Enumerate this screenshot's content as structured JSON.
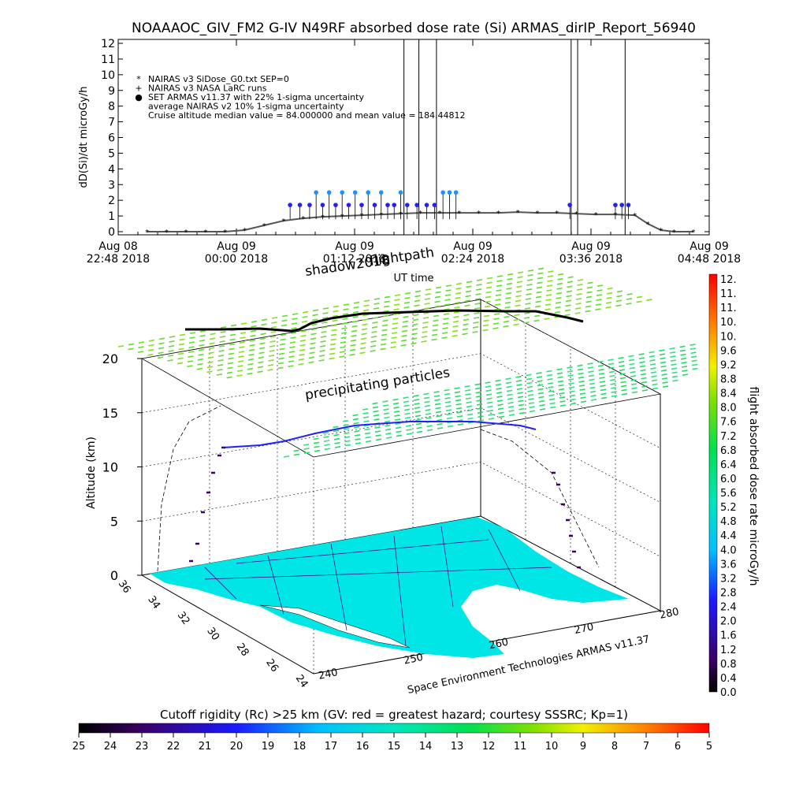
{
  "title": "NOAAAOC_GIV_FM2 G-IV   N49RF  absorbed dose rate (Si) ARMAS_dirIP_Report_56940",
  "chart_data": [
    {
      "type": "scatter",
      "panel": "time-series",
      "ylabel": "dD(Si)/dt microGy/h",
      "xlabel": "UT time",
      "ylim": [
        0,
        12
      ],
      "yticks": [
        "0",
        "1",
        "2",
        "3",
        "4",
        "5",
        "6",
        "7",
        "8",
        "9",
        "10",
        "11",
        "12"
      ],
      "xticks": [
        {
          "day": "Aug 08",
          "time": "22:48 2018"
        },
        {
          "day": "Aug 09",
          "time": "00:00 2018"
        },
        {
          "day": "Aug 09",
          "time": "01:12 2018"
        },
        {
          "day": "Aug 09",
          "time": "02:24 2018"
        },
        {
          "day": "Aug 09",
          "time": "03:36 2018"
        },
        {
          "day": "Aug 09",
          "time": "04:48 2018"
        }
      ],
      "xrange_hours": [
        0,
        6
      ],
      "legend_placement": "top-left",
      "legend": [
        {
          "symbol": "*",
          "text": "NAIRAS v3 SiDose_G0.txt SEP=0"
        },
        {
          "symbol": "+",
          "text": "NAIRAS v3 NASA LaRC runs"
        },
        {
          "symbol": "●",
          "text": "SET ARMAS v11.37 with 22% 1-sigma uncertainty"
        },
        {
          "symbol": "",
          "text": "average NAIRAS v2 10% 1-sigma uncertainty"
        },
        {
          "symbol": "",
          "text": "Cruise altitude median value = 84.000000 and mean value = 184.44812"
        }
      ],
      "colors": {
        "nairas": "#555555",
        "armas": "#2222ee",
        "armas_high": "#1e90ff",
        "low_dose": "#4b0082"
      },
      "series": [
        {
          "legend_ref": 0,
          "points": [
            [
              0.2,
              0
            ],
            [
              0.5,
              0
            ],
            [
              0.8,
              0
            ],
            [
              1.1,
              0
            ],
            [
              1.4,
              0
            ],
            [
              1.7,
              0.1
            ],
            [
              2.0,
              0.4
            ],
            [
              2.3,
              0.7
            ],
            [
              2.6,
              0.85
            ],
            [
              2.9,
              0.95
            ],
            [
              3.2,
              1.0
            ],
            [
              3.5,
              1.05
            ],
            [
              3.8,
              1.1
            ],
            [
              4.1,
              1.15
            ],
            [
              4.4,
              1.2
            ],
            [
              4.7,
              1.2
            ],
            [
              5.0,
              1.2
            ],
            [
              5.3,
              1.2
            ],
            [
              5.6,
              1.2
            ],
            [
              5.9,
              1.25
            ],
            [
              6.2,
              1.2
            ],
            [
              6.5,
              1.2
            ],
            [
              6.8,
              1.15
            ],
            [
              7.1,
              1.1
            ],
            [
              7.4,
              1.1
            ],
            [
              7.7,
              1.05
            ],
            [
              7.9,
              0.5
            ],
            [
              8.1,
              0.1
            ],
            [
              8.3,
              0
            ],
            [
              8.6,
              0
            ]
          ]
        },
        {
          "legend_ref": 2,
          "points": [
            [
              2.4,
              1.7
            ],
            [
              2.55,
              1.7
            ],
            [
              2.7,
              1.7
            ],
            [
              2.8,
              2.5
            ],
            [
              2.9,
              1.7
            ],
            [
              3.0,
              2.5
            ],
            [
              3.1,
              1.7
            ],
            [
              3.2,
              2.5
            ],
            [
              3.3,
              1.7
            ],
            [
              3.4,
              2.5
            ],
            [
              3.5,
              1.7
            ],
            [
              3.6,
              2.5
            ],
            [
              3.7,
              1.7
            ],
            [
              3.8,
              2.5
            ],
            [
              3.9,
              1.7
            ],
            [
              4.0,
              1.7
            ],
            [
              4.1,
              2.5
            ],
            [
              4.2,
              1.7
            ],
            [
              4.35,
              1.7
            ],
            [
              4.5,
              1.7
            ],
            [
              4.62,
              1.7
            ],
            [
              4.75,
              2.5
            ],
            [
              4.85,
              2.5
            ],
            [
              4.95,
              2.5
            ],
            [
              6.7,
              1.7
            ],
            [
              7.4,
              1.7
            ],
            [
              7.5,
              1.7
            ],
            [
              7.6,
              1.7
            ]
          ]
        }
      ],
      "spikes_x": [
        4.15,
        4.38,
        4.65,
        6.72,
        6.82,
        7.55
      ]
    },
    {
      "type": "scatter",
      "panel": "3d-flight-path",
      "annotations": [
        "shadow2018",
        "flightpath",
        "precipitating particles"
      ],
      "zlabel": "Altitude (km)",
      "zticks": [
        "0",
        "5",
        "10",
        "15",
        "20"
      ],
      "lat_ticks": [
        "36",
        "34",
        "32",
        "30",
        "28",
        "26",
        "24"
      ],
      "lon_ticks": [
        "240",
        "250",
        "260",
        "270",
        "280"
      ],
      "credit": "Space Environment Technologies ARMAS v11.37"
    },
    {
      "type": "heatmap",
      "panel": "dose-rate-colorbar",
      "label": "flight absorbed dose rate microGy/h",
      "range": [
        0.0,
        12.0
      ],
      "ticks": [
        "12.",
        "11.",
        "11.",
        "10.",
        "10.",
        "9.6",
        "9.2",
        "8.8",
        "8.4",
        "8.0",
        "7.6",
        "7.2",
        "6.8",
        "6.4",
        "6.0",
        "5.6",
        "5.2",
        "4.8",
        "4.4",
        "4.0",
        "3.6",
        "3.2",
        "2.8",
        "2.4",
        "2.0",
        "1.6",
        "1.2",
        "0.8",
        "0.4",
        "0.0"
      ]
    },
    {
      "type": "heatmap",
      "panel": "cutoff-rigidity-colorbar",
      "label": "Cutoff rigidity (Rc) >25 km (GV: red = greatest hazard; courtesy SSSRC; Kp=1)",
      "ticks": [
        "25",
        "24",
        "23",
        "22",
        "21",
        "20",
        "19",
        "18",
        "17",
        "16",
        "15",
        "14",
        "13",
        "12",
        "11",
        "10",
        "9",
        "8",
        "7",
        "6",
        "5"
      ]
    }
  ]
}
